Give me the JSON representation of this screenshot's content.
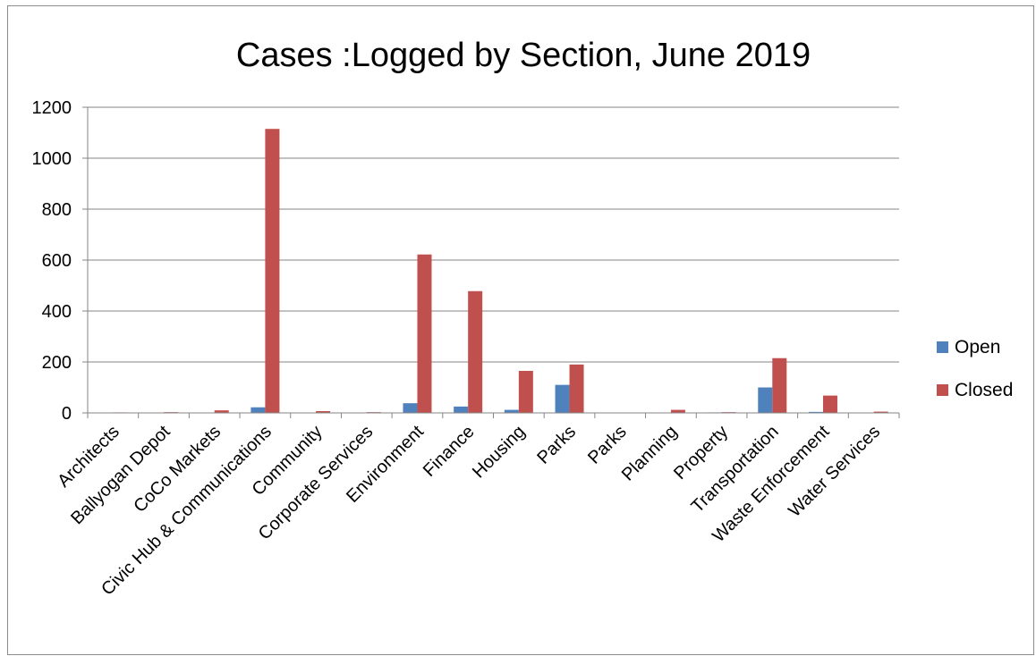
{
  "chart_data": {
    "type": "bar",
    "title": "Cases :Logged by Section, June 2019",
    "xlabel": "",
    "ylabel": "",
    "ylim": [
      0,
      1200
    ],
    "yticks": [
      0,
      200,
      400,
      600,
      800,
      1000,
      1200
    ],
    "grid": true,
    "legend_position": "right",
    "categories": [
      "Architects",
      "Ballyogan Depot",
      "CoCo Markets",
      "Civic Hub & Communications",
      "Community",
      "Corporate Services",
      "Environment",
      "Finance",
      "Housing",
      "Parks",
      "Parks",
      "Planning",
      "Property",
      "Transportation",
      "Waste Enforcement",
      "Water Services"
    ],
    "series": [
      {
        "name": "Open",
        "color": "#4F81BD",
        "values": [
          0,
          0,
          1,
          22,
          0,
          1,
          38,
          25,
          12,
          110,
          0,
          1,
          2,
          100,
          4,
          1
        ]
      },
      {
        "name": "Closed",
        "color": "#C0504D",
        "values": [
          2,
          3,
          10,
          1115,
          7,
          3,
          622,
          478,
          165,
          190,
          0,
          12,
          3,
          215,
          68,
          5
        ]
      }
    ]
  }
}
